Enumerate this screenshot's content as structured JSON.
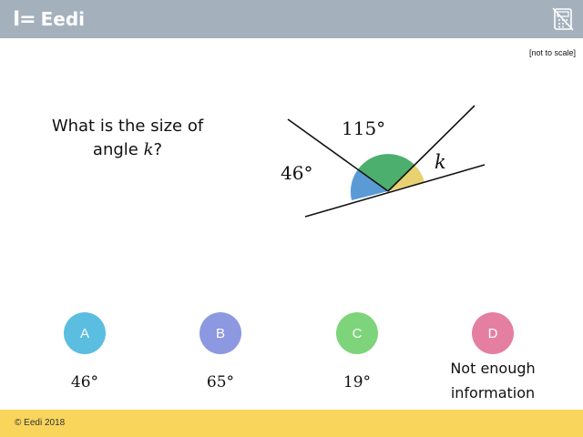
{
  "header": {
    "brand_mark": "I=",
    "brand_name": "Eedi",
    "tool_icon": "calculator-crossed-icon",
    "bg_color": "#a4b1bd"
  },
  "note": "[not to scale]",
  "question": {
    "prefix_line1": "What is the size of",
    "prefix_line2": "angle ",
    "variable": "k",
    "suffix": "?"
  },
  "diagram": {
    "labels": {
      "angle_left": "46°",
      "angle_top": "115°",
      "angle_right": "k"
    },
    "sector_colors": {
      "left": "#5b9bd5",
      "middle": "#4caf6e",
      "right": "#e8d170"
    }
  },
  "options": [
    {
      "letter": "A",
      "answer": "46°",
      "color": "#5bbde0"
    },
    {
      "letter": "B",
      "answer": "65°",
      "color": "#8c98e0"
    },
    {
      "letter": "C",
      "answer": "19°",
      "color": "#7ed47a"
    },
    {
      "letter": "D",
      "answer_line1": "Not enough",
      "answer_line2": "information",
      "color": "#e57fa1"
    }
  ],
  "footer": {
    "copyright": "© Eedi 2018",
    "bg_color": "#f9d55c"
  }
}
